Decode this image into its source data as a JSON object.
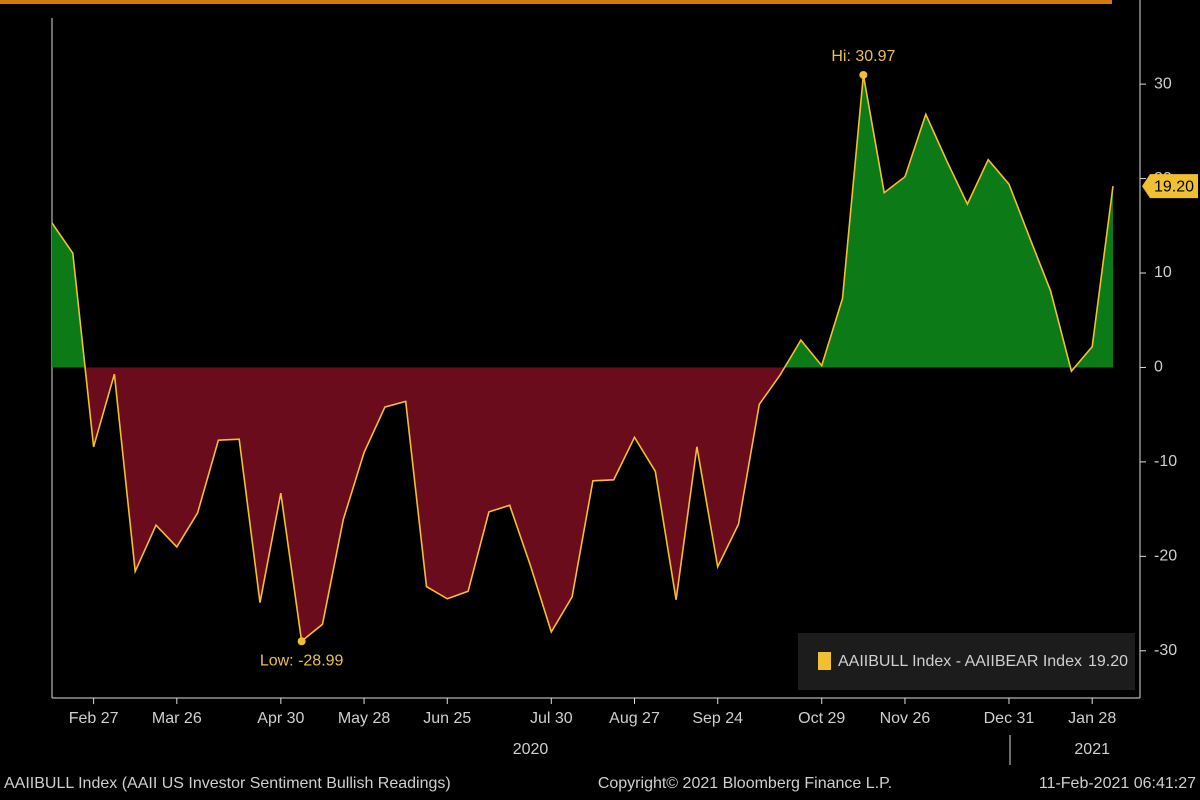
{
  "chart_data": {
    "type": "area",
    "series": [
      {
        "name": "AAIIBULL Index - AAIIBEAR Index",
        "color": "#f0c030",
        "values": [
          15.3,
          12.1,
          -8.4,
          -0.7,
          -21.6,
          -16.7,
          -19.0,
          -15.4,
          -7.7,
          -7.6,
          -24.9,
          -13.3,
          -28.99,
          -27.2,
          -16.1,
          -9.0,
          -4.2,
          -3.6,
          -23.2,
          -24.5,
          -23.7,
          -15.3,
          -14.6,
          -21.0,
          -28.0,
          -24.3,
          -12.0,
          -11.9,
          -7.4,
          -11.0,
          -24.6,
          -8.4,
          -21.1,
          -16.6,
          -3.9,
          -0.8,
          2.9,
          0.2,
          7.3,
          30.97,
          18.5,
          20.2,
          26.8,
          21.9,
          17.3,
          22.0,
          19.4,
          13.7,
          8.1,
          -0.4,
          2.2,
          19.2
        ]
      }
    ],
    "categories": [
      null,
      null,
      "Feb 27",
      null,
      null,
      null,
      "Mar 26",
      null,
      null,
      null,
      null,
      "Apr 30",
      null,
      null,
      null,
      "May 28",
      null,
      null,
      null,
      "Jun 25",
      null,
      null,
      null,
      null,
      "Jul 30",
      null,
      null,
      null,
      "Aug 27",
      null,
      null,
      null,
      "Sep 24",
      null,
      null,
      null,
      null,
      "Oct 29",
      null,
      null,
      null,
      "Nov 26",
      null,
      null,
      null,
      null,
      "Dec 31",
      null,
      null,
      null,
      "Jan 28",
      null
    ],
    "years": [
      "2020",
      "2021"
    ],
    "positive_color": "#0c7a16",
    "negative_color": "#6a0c1c",
    "ylim": [
      -35,
      37
    ],
    "yticks": [
      30,
      20,
      10,
      0,
      -10,
      -20,
      -30
    ],
    "hi_label": "Hi: 30.97",
    "low_label": "Low: -28.99",
    "last_value_label": "19.20",
    "footer_left": "AAIIBULL Index (AAII US Investor Sentiment Bullish Readings)",
    "footer_center": "Copyright© 2021 Bloomberg Finance L.P.",
    "footer_right": "11-Feb-2021 06:41:27"
  }
}
